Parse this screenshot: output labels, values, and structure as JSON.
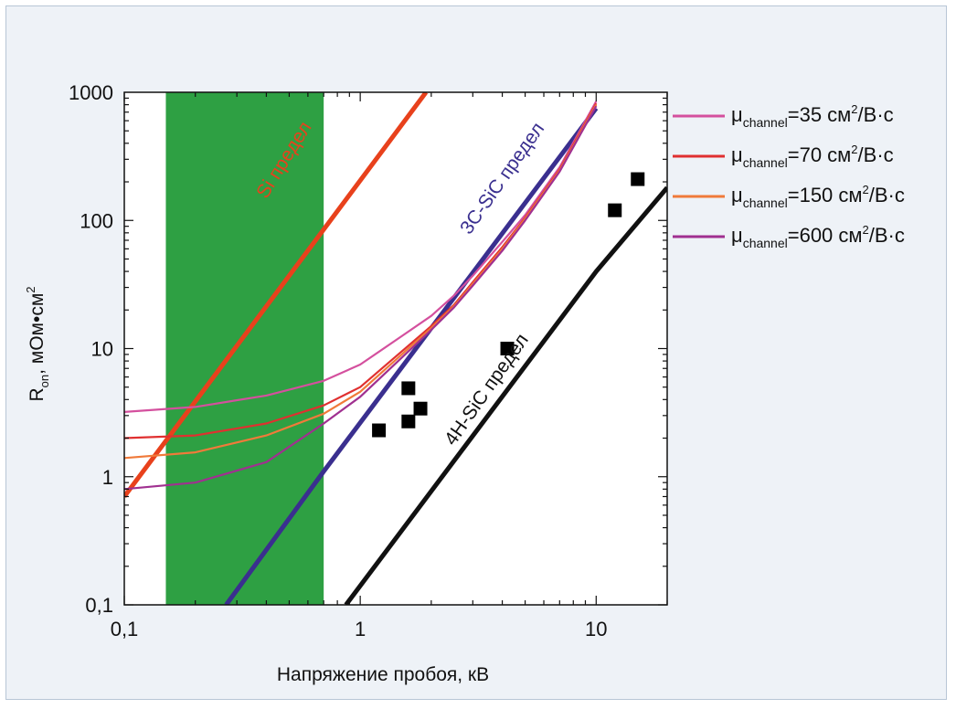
{
  "chart_data": {
    "type": "line",
    "xlabel": "Напряжение пробоя, кВ",
    "ylabel_main": "R",
    "ylabel_sub": "on",
    "ylabel_rest": ", мОм•см",
    "ylabel_sup": "2",
    "x_scale": "log",
    "y_scale": "log",
    "xlim": [
      0.1,
      20
    ],
    "ylim": [
      0.1,
      1000
    ],
    "x_ticks": [
      {
        "value": 0.1,
        "label": "0,1"
      },
      {
        "value": 1,
        "label": "1"
      },
      {
        "value": 10,
        "label": "10"
      }
    ],
    "y_ticks": [
      {
        "value": 0.1,
        "label": "0,1"
      },
      {
        "value": 1,
        "label": "1"
      },
      {
        "value": 10,
        "label": "10"
      },
      {
        "value": 100,
        "label": "100"
      },
      {
        "value": 1000,
        "label": "1000"
      }
    ],
    "shaded_region": {
      "x_from": 0.15,
      "x_to": 0.7,
      "color": "#2ea043"
    },
    "limit_lines": [
      {
        "label": "Si предел",
        "color": "#e8411c",
        "points": [
          [
            0.1,
            0.7
          ],
          [
            0.7,
            85
          ],
          [
            1.9,
            1000
          ]
        ]
      },
      {
        "label": "3C-SiC предел",
        "color": "#3a2f8f",
        "points": [
          [
            0.27,
            0.1
          ],
          [
            0.7,
            1.1
          ],
          [
            10,
            750
          ]
        ]
      },
      {
        "label": "4H-SiC предел",
        "color": "#111111",
        "points": [
          [
            0.87,
            0.1
          ],
          [
            10,
            40
          ],
          [
            20,
            180
          ]
        ]
      }
    ],
    "series": [
      {
        "name": "μchannel=35 см²/В·с",
        "legend_main": "μ",
        "legend_sub": "channel",
        "legend_rest": "=35 см",
        "legend_sup": "2",
        "legend_tail": "/В·с",
        "color": "#d4509e",
        "x": [
          0.1,
          0.2,
          0.4,
          0.7,
          1.0,
          1.5,
          2.0,
          2.5,
          3,
          4,
          5,
          7,
          10
        ],
        "y": [
          3.2,
          3.5,
          4.3,
          5.6,
          7.5,
          12.5,
          18,
          26,
          37,
          68,
          110,
          260,
          850
        ]
      },
      {
        "name": "μchannel=70 см²/В·с",
        "legend_main": "μ",
        "legend_sub": "channel",
        "legend_rest": "=70 см",
        "legend_sup": "2",
        "legend_tail": "/В·с",
        "color": "#e03030",
        "x": [
          0.1,
          0.2,
          0.4,
          0.7,
          1.0,
          1.5,
          2.0,
          2.5,
          3,
          4,
          5,
          7,
          10
        ],
        "y": [
          2.0,
          2.1,
          2.6,
          3.6,
          5.0,
          9.5,
          15,
          22,
          33,
          62,
          105,
          250,
          820
        ]
      },
      {
        "name": "μchannel=150 см²/В·с",
        "legend_main": "μ",
        "legend_sub": "channel",
        "legend_rest": "=150 см",
        "legend_sup": "2",
        "legend_tail": "/В·с",
        "color": "#f07a3a",
        "x": [
          0.1,
          0.2,
          0.4,
          0.7,
          1.0,
          1.5,
          2.0,
          2.5,
          3,
          4,
          5,
          7,
          10
        ],
        "y": [
          1.4,
          1.55,
          2.1,
          3.1,
          4.6,
          9.0,
          14.5,
          21.5,
          32,
          60,
          103,
          245,
          800
        ]
      },
      {
        "name": "μchannel=600 см²/В·с",
        "legend_main": "μ",
        "legend_sub": "channel",
        "legend_rest": "=600 см",
        "legend_sup": "2",
        "legend_tail": "/В·с",
        "color": "#a03090",
        "x": [
          0.1,
          0.2,
          0.4,
          0.7,
          1.0,
          1.5,
          2.0,
          2.5,
          3,
          4,
          5,
          7,
          10
        ],
        "y": [
          0.8,
          0.9,
          1.3,
          2.6,
          4.2,
          8.5,
          14,
          21,
          31,
          58,
          100,
          240,
          780
        ]
      }
    ],
    "markers": {
      "shape": "square",
      "color": "#000000",
      "points": [
        [
          1.2,
          2.3
        ],
        [
          1.6,
          2.7
        ],
        [
          1.6,
          4.9
        ],
        [
          1.8,
          3.4
        ],
        [
          4.2,
          10
        ],
        [
          12,
          120
        ],
        [
          15,
          210
        ]
      ]
    }
  }
}
